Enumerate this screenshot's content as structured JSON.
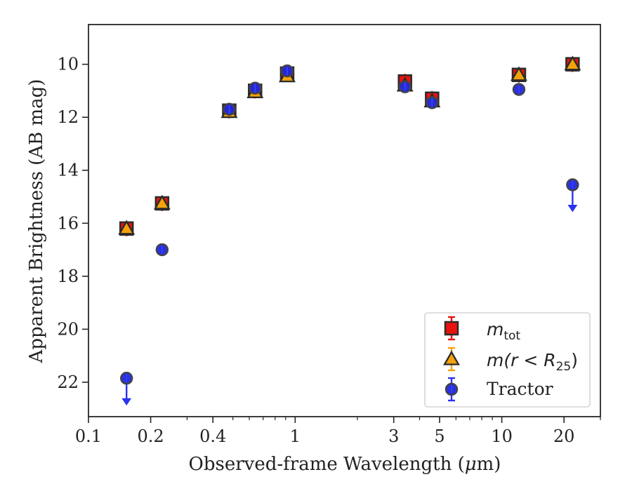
{
  "chart_data": {
    "type": "scatter",
    "xscale": "log",
    "yaxis_inverted": true,
    "xlim": [
      0.1,
      30
    ],
    "ylim": [
      8.5,
      23.3
    ],
    "xlabel_parts": {
      "before": "Observed-frame Wavelength (",
      "mu": "μ",
      "after": "m)"
    },
    "ylabel": "Apparent Brightness (AB mag)",
    "xticks": [
      {
        "value": 0.1,
        "label": "0.1"
      },
      {
        "value": 0.2,
        "label": "0.2"
      },
      {
        "value": 0.4,
        "label": "0.4"
      },
      {
        "value": 1,
        "label": "1"
      },
      {
        "value": 3,
        "label": "3"
      },
      {
        "value": 5,
        "label": "5"
      },
      {
        "value": 10,
        "label": "10"
      },
      {
        "value": 20,
        "label": "20"
      }
    ],
    "xminor": [
      0.3,
      0.5,
      0.6,
      0.7,
      0.8,
      0.9,
      2,
      4,
      6,
      7,
      8,
      9,
      30
    ],
    "yticks": [
      10,
      12,
      14,
      16,
      18,
      20,
      22
    ],
    "grid": false,
    "legend_position": "lower right",
    "series": [
      {
        "key": "mtot",
        "marker": "square",
        "color": "#e8130f",
        "edgecolor": "#2b2b2b",
        "errorcolor": "#e8130f",
        "legend": {
          "main": "m",
          "sub": "tot"
        },
        "points": [
          {
            "x": 0.1528,
            "y": 16.2
          },
          {
            "x": 0.2271,
            "y": 15.25
          },
          {
            "x": 0.48,
            "y": 11.75
          },
          {
            "x": 0.64,
            "y": 11.0
          },
          {
            "x": 0.915,
            "y": 10.35
          },
          {
            "x": 3.4,
            "y": 10.65
          },
          {
            "x": 4.6,
            "y": 11.3
          },
          {
            "x": 12.1,
            "y": 10.4
          },
          {
            "x": 22.0,
            "y": 10.0
          }
        ]
      },
      {
        "key": "mr25",
        "marker": "triangle",
        "color": "#f5a20a",
        "edgecolor": "#2b2b2b",
        "errorcolor": "#f5a20a",
        "legend": {
          "main": "m",
          "paren": "(r < R",
          "sub": "25",
          "close": ")"
        },
        "points": [
          {
            "x": 0.1528,
            "y": 16.2
          },
          {
            "x": 0.2271,
            "y": 15.25
          },
          {
            "x": 0.48,
            "y": 11.8
          },
          {
            "x": 0.64,
            "y": 11.05
          },
          {
            "x": 0.915,
            "y": 10.45
          },
          {
            "x": 3.4,
            "y": 10.8
          },
          {
            "x": 4.6,
            "y": 11.4
          },
          {
            "x": 12.1,
            "y": 10.4
          },
          {
            "x": 22.0,
            "y": 10.0
          }
        ]
      },
      {
        "key": "tractor",
        "marker": "circle",
        "color": "#1f26e0",
        "edgecolor": "#444444",
        "errorcolor": "#2b33ee",
        "legend": {
          "main": "Tractor"
        },
        "points": [
          {
            "x": 0.1528,
            "y": 21.85,
            "upper_limit": true
          },
          {
            "x": 0.2271,
            "y": 17.0
          },
          {
            "x": 0.48,
            "y": 11.7
          },
          {
            "x": 0.64,
            "y": 10.9
          },
          {
            "x": 0.915,
            "y": 10.25
          },
          {
            "x": 3.4,
            "y": 10.85
          },
          {
            "x": 4.6,
            "y": 11.45
          },
          {
            "x": 12.1,
            "y": 10.95
          },
          {
            "x": 22.0,
            "y": 14.55,
            "upper_limit": true
          }
        ]
      }
    ]
  }
}
